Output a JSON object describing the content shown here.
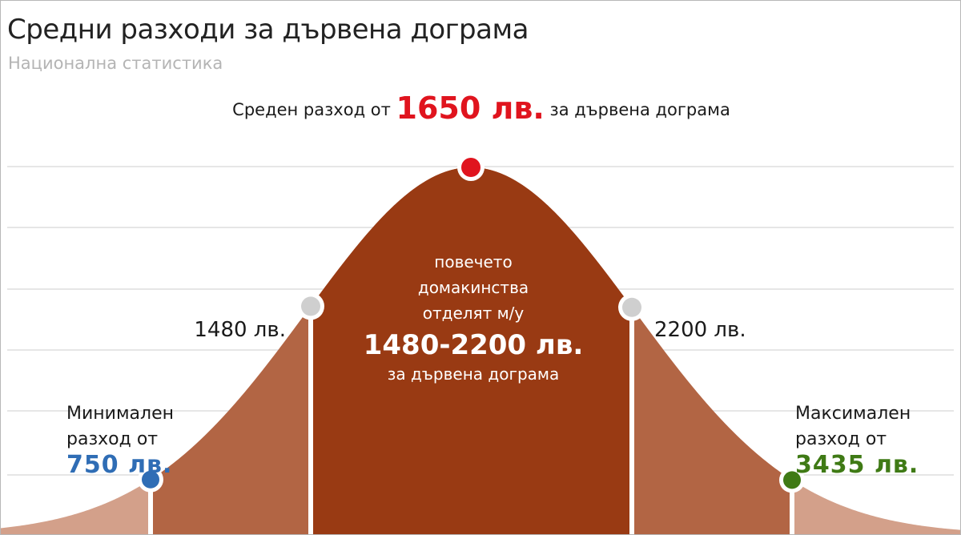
{
  "header": {
    "title": "Средни разходи за дървена дограма",
    "subtitle": "Национална статистика"
  },
  "chart_data": {
    "type": "area",
    "x_unit": "лв.",
    "grid": true,
    "colors": {
      "background_fill": "#d3a08a",
      "mid_fill": "#b26544",
      "core_fill": "#993a13",
      "grid": "#e6e6e6",
      "marker_avg": "#e0141e",
      "marker_range": "#cfcfcf",
      "marker_min": "#2f6db5",
      "marker_max": "#3f7a15"
    },
    "markers": {
      "min": {
        "value": 750,
        "text": "750 лв.",
        "label": [
          "Минимален",
          "разход от"
        ]
      },
      "range_low": {
        "value": 1480,
        "text": "1480 лв."
      },
      "average": {
        "value": 1650,
        "text": "1650 лв."
      },
      "range_high": {
        "value": 2200,
        "text": "2200 лв."
      },
      "max": {
        "value": 3435,
        "text": "3435 лв.",
        "label": [
          "Максимален",
          "разход от"
        ]
      }
    },
    "headline": {
      "prefix": "Среден разход от",
      "value": "1650 лв.",
      "suffix": "за дървена дограма"
    },
    "core_note": {
      "lines": [
        "повечето",
        "домакинства",
        "отделят м/у"
      ],
      "range": "1480-2200 лв.",
      "tail": "за дървена дограма"
    }
  }
}
